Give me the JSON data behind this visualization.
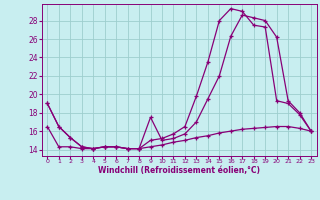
{
  "xlabel": "Windchill (Refroidissement éolien,°C)",
  "bg_color": "#c8eef0",
  "grid_color": "#9ecece",
  "line_color": "#880077",
  "x_ticks": [
    0,
    1,
    2,
    3,
    4,
    5,
    6,
    7,
    8,
    9,
    10,
    11,
    12,
    13,
    14,
    15,
    16,
    17,
    18,
    19,
    20,
    21,
    22,
    23
  ],
  "y_ticks": [
    14,
    16,
    18,
    20,
    22,
    24,
    26,
    28
  ],
  "ylim": [
    13.3,
    29.8
  ],
  "xlim": [
    -0.5,
    23.5
  ],
  "line1_x": [
    0,
    1,
    2,
    3,
    4,
    5,
    6,
    7,
    8,
    9,
    10,
    11,
    12,
    13,
    14,
    15,
    16,
    17,
    18,
    19,
    20,
    21,
    22,
    23
  ],
  "line1_y": [
    19.0,
    16.5,
    15.3,
    14.3,
    14.1,
    14.3,
    14.3,
    14.1,
    14.1,
    17.5,
    15.0,
    15.2,
    15.7,
    17.0,
    19.5,
    22.0,
    26.3,
    28.6,
    28.3,
    28.0,
    26.2,
    19.3,
    18.0,
    16.0
  ],
  "line2_x": [
    0,
    1,
    2,
    3,
    4,
    5,
    6,
    7,
    8,
    9,
    10,
    11,
    12,
    13,
    14,
    15,
    16,
    17,
    18,
    19,
    20,
    21,
    22,
    23
  ],
  "line2_y": [
    19.0,
    16.5,
    15.3,
    14.3,
    14.1,
    14.3,
    14.3,
    14.1,
    14.1,
    15.0,
    15.2,
    15.7,
    16.5,
    19.8,
    23.5,
    28.0,
    29.3,
    29.0,
    27.5,
    27.3,
    19.3,
    19.0,
    17.8,
    16.0
  ],
  "line3_x": [
    0,
    1,
    2,
    3,
    4,
    5,
    6,
    7,
    8,
    9,
    10,
    11,
    12,
    13,
    14,
    15,
    16,
    17,
    18,
    19,
    20,
    21,
    22,
    23
  ],
  "line3_y": [
    16.5,
    14.3,
    14.3,
    14.1,
    14.1,
    14.3,
    14.3,
    14.1,
    14.1,
    14.3,
    14.5,
    14.8,
    15.0,
    15.3,
    15.5,
    15.8,
    16.0,
    16.2,
    16.3,
    16.4,
    16.5,
    16.5,
    16.3,
    16.0
  ]
}
